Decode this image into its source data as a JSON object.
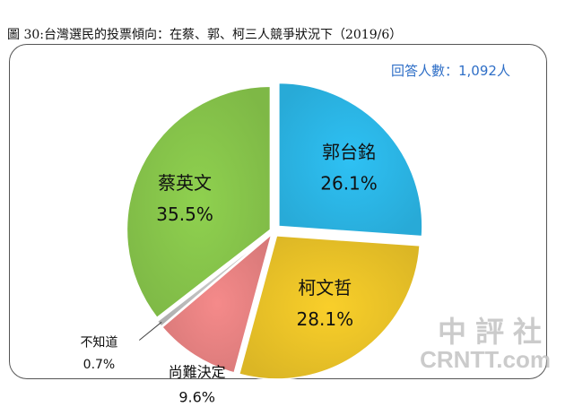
{
  "title": "圖 30:台灣選民的投票傾向：在蔡、郭、柯三人競爭狀況下（2019/6）",
  "respondents": "回答人數：1,092人",
  "watermark": {
    "cn": "中評社",
    "en": "CRNTT.com"
  },
  "chart_data": {
    "type": "pie",
    "slices": [
      {
        "label": "郭台銘",
        "value": 26.1,
        "value_text": "26.1%",
        "color": "#2ec1f4"
      },
      {
        "label": "柯文哲",
        "value": 28.1,
        "value_text": "28.1%",
        "color": "#f9cf2a"
      },
      {
        "label": "尚難決定",
        "value": 9.6,
        "value_text": "9.6%",
        "color": "#f58a8a"
      },
      {
        "label": "不知道",
        "value": 0.7,
        "value_text": "0.7%",
        "color": "#c8c8c8"
      },
      {
        "label": "蔡英文",
        "value": 35.5,
        "value_text": "35.5%",
        "color": "#8fd14f"
      }
    ],
    "start": "12 o'clock",
    "direction": "clockwise"
  }
}
